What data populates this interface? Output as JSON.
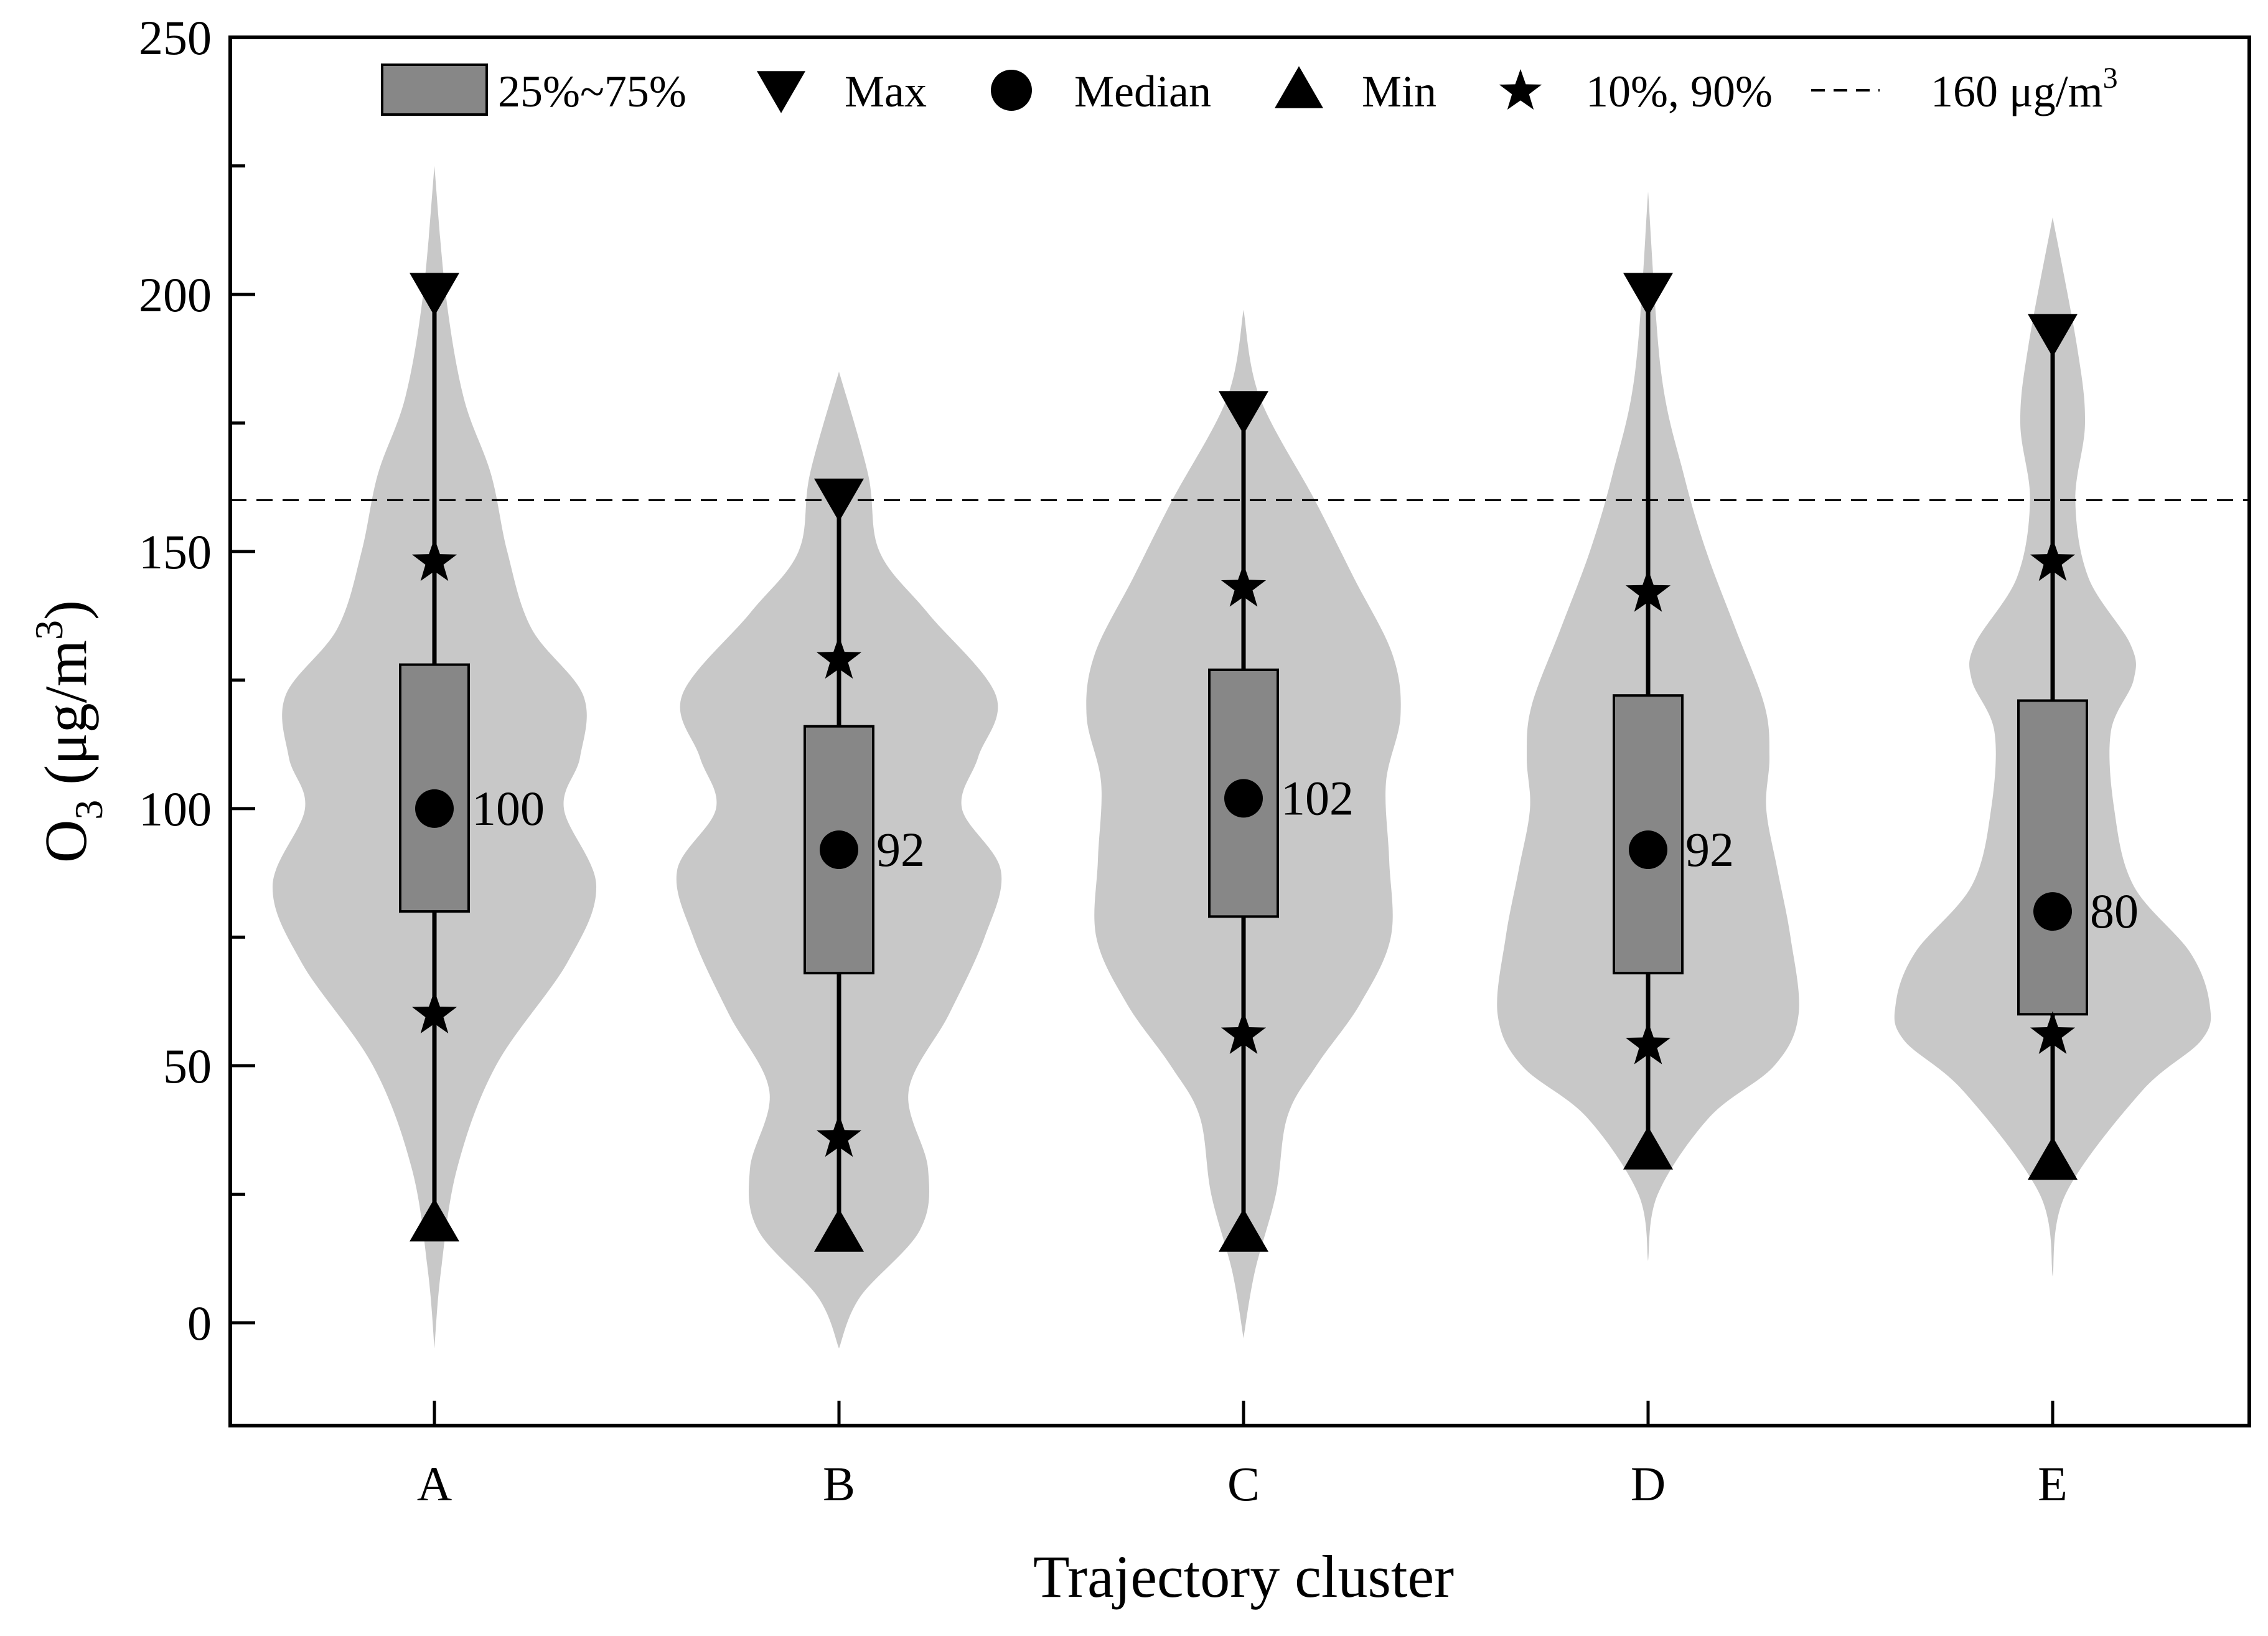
{
  "chart_data": {
    "type": "violin-box",
    "title": "",
    "xlabel": "Trajectory cluster",
    "ylabel": {
      "main": "O",
      "sub": "3",
      "unit_prefix": " (μg/m",
      "sup": "3",
      "unit_suffix": ")"
    },
    "ylim": [
      -20,
      250
    ],
    "yticks": [
      0,
      50,
      100,
      150,
      200,
      250
    ],
    "grid": false,
    "legend_position": "top",
    "legend": {
      "box": "25%~75%",
      "max": "Max",
      "median": "Median",
      "min": "Min",
      "percentiles": "10%, 90%",
      "threshold_prefix": "160 μg/m",
      "threshold_sup": "3"
    },
    "threshold": 160,
    "categories": [
      "A",
      "B",
      "C",
      "D",
      "E"
    ],
    "series": [
      {
        "category": "A",
        "min": 20,
        "p10": 60,
        "q1": 80,
        "median": 100,
        "q3": 128,
        "p90": 148,
        "max": 200,
        "median_label": "100",
        "violin": [
          [
            -5,
            0
          ],
          [
            10,
            0.04
          ],
          [
            30,
            0.14
          ],
          [
            50,
            0.38
          ],
          [
            70,
            0.82
          ],
          [
            85,
            1.0
          ],
          [
            100,
            0.8
          ],
          [
            110,
            0.9
          ],
          [
            122,
            0.92
          ],
          [
            135,
            0.6
          ],
          [
            150,
            0.45
          ],
          [
            165,
            0.35
          ],
          [
            180,
            0.18
          ],
          [
            200,
            0.07
          ],
          [
            225,
            0
          ]
        ]
      },
      {
        "category": "B",
        "min": 18,
        "p10": 36,
        "q1": 68,
        "median": 92,
        "q3": 116,
        "p90": 129,
        "max": 160,
        "median_label": "92",
        "violin": [
          [
            -5,
            0
          ],
          [
            5,
            0.13
          ],
          [
            18,
            0.5
          ],
          [
            30,
            0.55
          ],
          [
            45,
            0.43
          ],
          [
            60,
            0.68
          ],
          [
            75,
            0.9
          ],
          [
            88,
            1.0
          ],
          [
            100,
            0.76
          ],
          [
            110,
            0.86
          ],
          [
            122,
            0.97
          ],
          [
            138,
            0.55
          ],
          [
            150,
            0.25
          ],
          [
            165,
            0.18
          ],
          [
            185,
            0
          ]
        ]
      },
      {
        "category": "C",
        "min": 18,
        "p10": 56,
        "q1": 79,
        "median": 102,
        "q3": 127,
        "p90": 143,
        "max": 177,
        "median_label": "102",
        "violin": [
          [
            -3,
            0
          ],
          [
            10,
            0.07
          ],
          [
            25,
            0.2
          ],
          [
            40,
            0.27
          ],
          [
            50,
            0.45
          ],
          [
            62,
            0.72
          ],
          [
            75,
            0.91
          ],
          [
            90,
            0.9
          ],
          [
            105,
            0.88
          ],
          [
            118,
            0.97
          ],
          [
            130,
            0.92
          ],
          [
            145,
            0.68
          ],
          [
            160,
            0.44
          ],
          [
            180,
            0.1
          ],
          [
            197,
            0
          ]
        ]
      },
      {
        "category": "D",
        "min": 34,
        "p10": 54,
        "q1": 68,
        "median": 92,
        "q3": 122,
        "p90": 142,
        "max": 200,
        "median_label": "92",
        "violin": [
          [
            12,
            0
          ],
          [
            25,
            0.06
          ],
          [
            40,
            0.38
          ],
          [
            50,
            0.78
          ],
          [
            60,
            0.93
          ],
          [
            75,
            0.88
          ],
          [
            88,
            0.8
          ],
          [
            100,
            0.73
          ],
          [
            110,
            0.75
          ],
          [
            120,
            0.72
          ],
          [
            135,
            0.54
          ],
          [
            150,
            0.36
          ],
          [
            165,
            0.22
          ],
          [
            185,
            0.08
          ],
          [
            220,
            0
          ]
        ]
      },
      {
        "category": "E",
        "min": 32,
        "p10": 56,
        "q1": 60,
        "median": 80,
        "q3": 121,
        "p90": 148,
        "max": 192,
        "median_label": "80",
        "violin": [
          [
            9,
            0
          ],
          [
            25,
            0.08
          ],
          [
            45,
            0.55
          ],
          [
            55,
            0.92
          ],
          [
            62,
            0.97
          ],
          [
            72,
            0.85
          ],
          [
            85,
            0.5
          ],
          [
            100,
            0.38
          ],
          [
            115,
            0.36
          ],
          [
            125,
            0.5
          ],
          [
            132,
            0.48
          ],
          [
            145,
            0.22
          ],
          [
            160,
            0.14
          ],
          [
            175,
            0.2
          ],
          [
            190,
            0.15
          ],
          [
            215,
            0
          ]
        ]
      }
    ]
  }
}
